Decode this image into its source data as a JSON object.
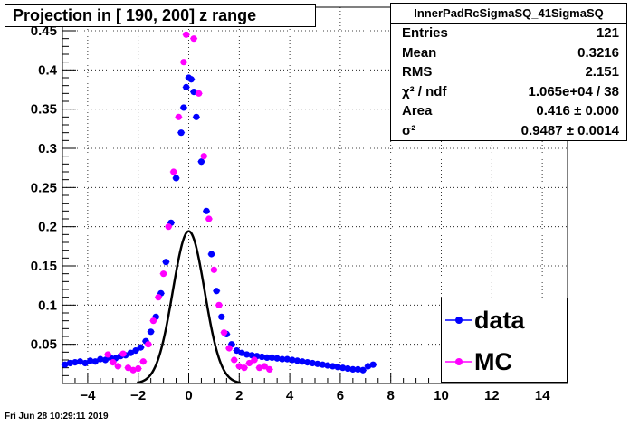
{
  "title": "Projection in [ 190, 200] z range",
  "stats": {
    "title": "InnerPadRcSigmaSQ_41SigmaSQ",
    "rows": [
      {
        "label": "Entries",
        "value": "121"
      },
      {
        "label": "Mean",
        "value": "0.3216"
      },
      {
        "label": "RMS",
        "value": "2.151"
      },
      {
        "label": "χ² / ndf",
        "value": "1.065e+04 / 38"
      },
      {
        "label": "Area",
        "value": "0.416 ± 0.000"
      },
      {
        "label": "σ²",
        "value": "0.9487 ± 0.0014"
      }
    ]
  },
  "legend": {
    "data_label": "data",
    "mc_label": "MC"
  },
  "timestamp": "Fri Jun 28 10:29:11 2019",
  "colors": {
    "data": "#0000ff",
    "mc": "#ff00ff",
    "fit": "#000000"
  },
  "chart_data": {
    "type": "scatter",
    "xlim": [
      -5,
      15
    ],
    "ylim": [
      0,
      0.48
    ],
    "grid": true,
    "legend_position": "bottom-right",
    "x_ticks": [
      -4,
      -2,
      0,
      2,
      4,
      6,
      8,
      10,
      12,
      14
    ],
    "y_ticks": [
      0.05,
      0.1,
      0.15,
      0.2,
      0.25,
      0.3,
      0.35,
      0.4,
      0.45
    ],
    "series": [
      {
        "name": "data",
        "color": "#0000ff",
        "points": [
          [
            -4.9,
            0.024
          ],
          [
            -4.7,
            0.026
          ],
          [
            -4.5,
            0.027
          ],
          [
            -4.3,
            0.028
          ],
          [
            -4.1,
            0.026
          ],
          [
            -3.9,
            0.029
          ],
          [
            -3.7,
            0.028
          ],
          [
            -3.5,
            0.031
          ],
          [
            -3.3,
            0.03
          ],
          [
            -3.1,
            0.033
          ],
          [
            -2.9,
            0.032
          ],
          [
            -2.7,
            0.035
          ],
          [
            -2.5,
            0.036
          ],
          [
            -2.3,
            0.039
          ],
          [
            -2.1,
            0.042
          ],
          [
            -1.9,
            0.046
          ],
          [
            -1.7,
            0.054
          ],
          [
            -1.5,
            0.066
          ],
          [
            -1.3,
            0.085
          ],
          [
            -1.1,
            0.115
          ],
          [
            -0.9,
            0.155
          ],
          [
            -0.7,
            0.205
          ],
          [
            -0.5,
            0.262
          ],
          [
            -0.3,
            0.32
          ],
          [
            -0.2,
            0.352
          ],
          [
            -0.1,
            0.378
          ],
          [
            0.0,
            0.39
          ],
          [
            0.1,
            0.388
          ],
          [
            0.2,
            0.372
          ],
          [
            0.3,
            0.34
          ],
          [
            0.5,
            0.283
          ],
          [
            0.7,
            0.22
          ],
          [
            0.9,
            0.165
          ],
          [
            1.1,
            0.118
          ],
          [
            1.3,
            0.085
          ],
          [
            1.5,
            0.063
          ],
          [
            1.7,
            0.05
          ],
          [
            1.9,
            0.042
          ],
          [
            2.1,
            0.039
          ],
          [
            2.3,
            0.037
          ],
          [
            2.5,
            0.036
          ],
          [
            2.7,
            0.035
          ],
          [
            2.9,
            0.034
          ],
          [
            3.1,
            0.033
          ],
          [
            3.3,
            0.033
          ],
          [
            3.5,
            0.032
          ],
          [
            3.7,
            0.031
          ],
          [
            3.9,
            0.031
          ],
          [
            4.1,
            0.03
          ],
          [
            4.3,
            0.029
          ],
          [
            4.5,
            0.028
          ],
          [
            4.7,
            0.027
          ],
          [
            4.9,
            0.026
          ],
          [
            5.1,
            0.025
          ],
          [
            5.3,
            0.024
          ],
          [
            5.5,
            0.023
          ],
          [
            5.7,
            0.022
          ],
          [
            5.9,
            0.021
          ],
          [
            6.1,
            0.02
          ],
          [
            6.3,
            0.019
          ],
          [
            6.5,
            0.018
          ],
          [
            6.7,
            0.018
          ],
          [
            6.9,
            0.017
          ],
          [
            7.1,
            0.022
          ],
          [
            7.3,
            0.024
          ]
        ]
      },
      {
        "name": "MC",
        "color": "#ff00ff",
        "points": [
          [
            -3.2,
            0.037
          ],
          [
            -3.0,
            0.027
          ],
          [
            -2.8,
            0.022
          ],
          [
            -2.6,
            0.038
          ],
          [
            -2.4,
            0.02
          ],
          [
            -2.2,
            0.017
          ],
          [
            -2.0,
            0.019
          ],
          [
            -1.8,
            0.028
          ],
          [
            -1.6,
            0.05
          ],
          [
            -1.4,
            0.08
          ],
          [
            -1.2,
            0.11
          ],
          [
            -1.0,
            0.14
          ],
          [
            -0.8,
            0.2
          ],
          [
            -0.6,
            0.27
          ],
          [
            -0.4,
            0.34
          ],
          [
            -0.2,
            0.41
          ],
          [
            -0.1,
            0.445
          ],
          [
            0.0,
            0.47
          ],
          [
            0.1,
            0.465
          ],
          [
            0.2,
            0.44
          ],
          [
            0.4,
            0.37
          ],
          [
            0.6,
            0.29
          ],
          [
            0.8,
            0.21
          ],
          [
            1.0,
            0.145
          ],
          [
            1.2,
            0.1
          ],
          [
            1.4,
            0.065
          ],
          [
            1.6,
            0.045
          ],
          [
            1.8,
            0.03
          ],
          [
            2.0,
            0.022
          ],
          [
            2.2,
            0.02
          ],
          [
            2.4,
            0.026
          ],
          [
            2.6,
            0.03
          ],
          [
            2.8,
            0.02
          ],
          [
            3.0,
            0.022
          ],
          [
            3.2,
            0.018
          ]
        ]
      }
    ],
    "fit": {
      "type": "gaussian",
      "color": "#000000",
      "area": 0.416,
      "sigma2": 0.9487,
      "mean": 0.0,
      "xrange": [
        -2.05,
        2.05
      ]
    }
  }
}
